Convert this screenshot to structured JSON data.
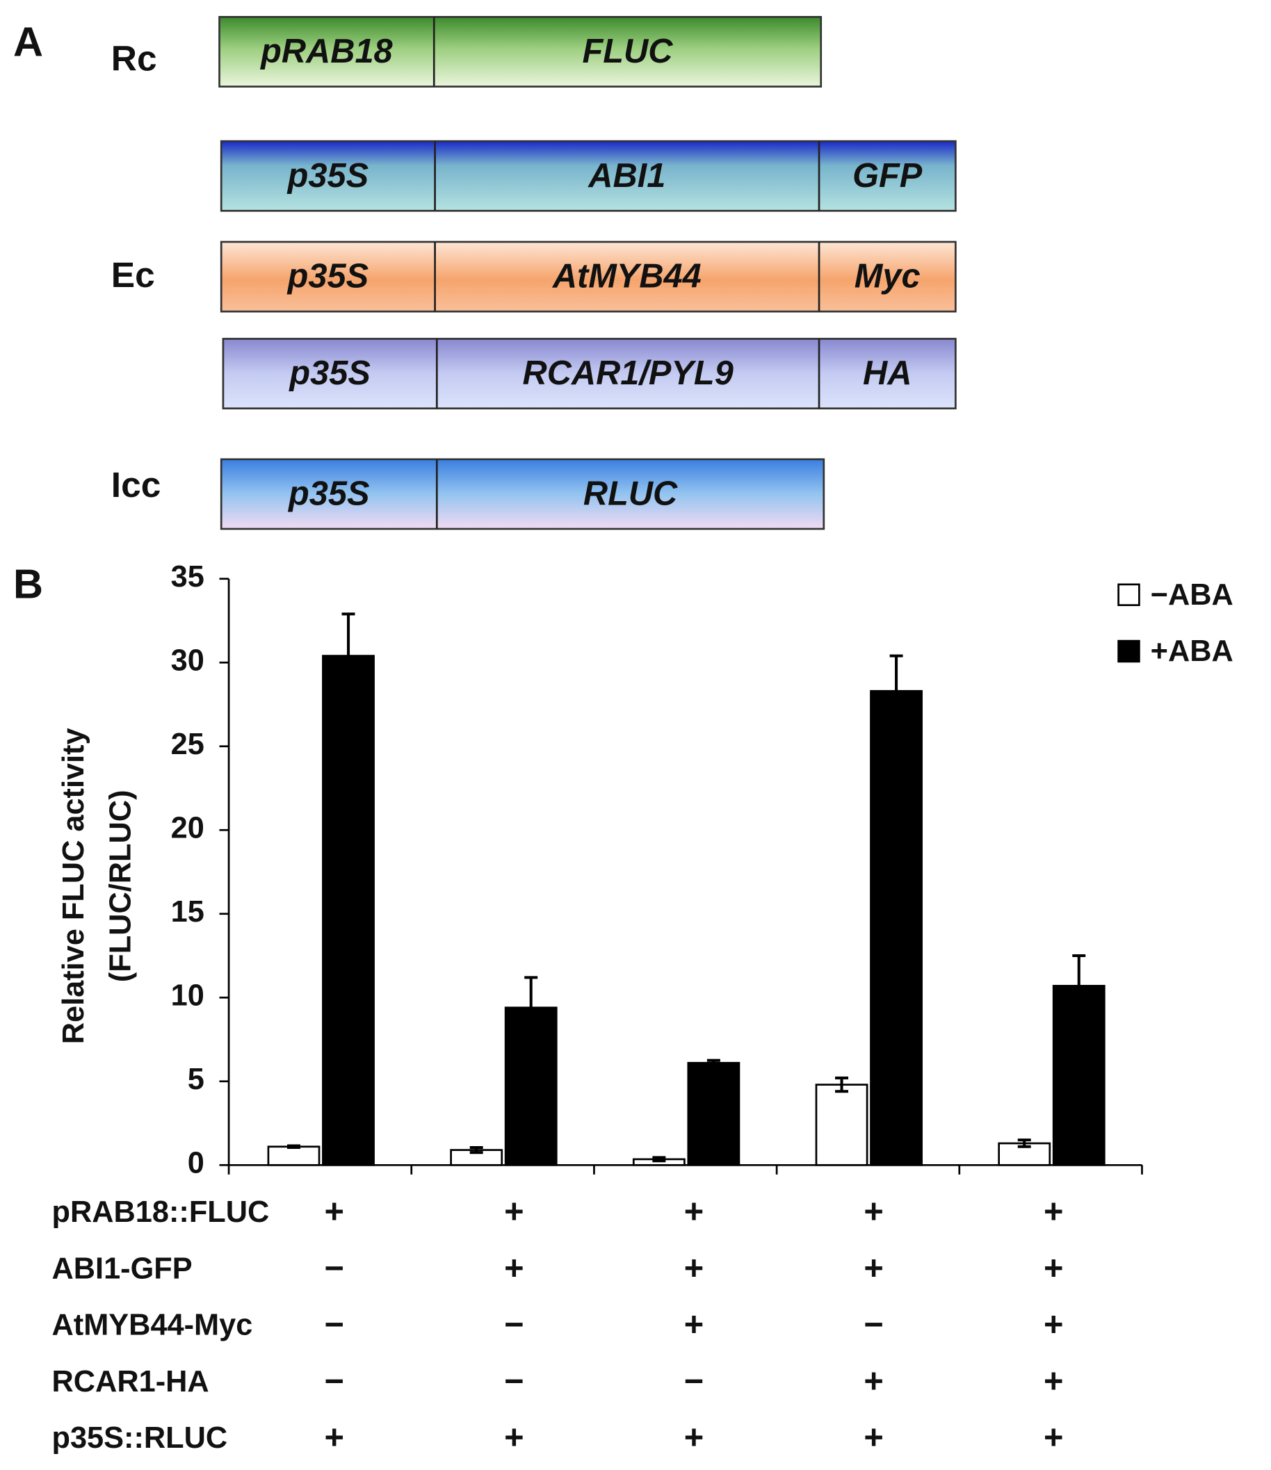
{
  "diagram": {
    "panel_label": "A",
    "groups": [
      {
        "label": "Rc",
        "constructs": [
          {
            "segments": [
              "pRAB18",
              "FLUC"
            ]
          }
        ]
      },
      {
        "label": "Ec",
        "constructs": [
          {
            "segments": [
              "p35S",
              "ABI1",
              "GFP"
            ]
          },
          {
            "segments": [
              "p35S",
              "AtMYB44",
              "Myc"
            ]
          },
          {
            "segments": [
              "p35S",
              "RCAR1/PYL9",
              "HA"
            ]
          }
        ]
      },
      {
        "label": "Icc",
        "constructs": [
          {
            "segments": [
              "p35S",
              "RLUC"
            ]
          }
        ]
      }
    ]
  },
  "chart_data": {
    "type": "bar",
    "panel_label": "B",
    "y_label_lines": [
      "Relative  FLUC activity",
      "(FLUC/RLUC)"
    ],
    "categories": [
      null,
      null,
      null,
      null,
      null
    ],
    "series": [
      {
        "name": "−ABA",
        "color": "#ffffff",
        "values": [
          1.1,
          0.9,
          0.35,
          4.8,
          1.3
        ],
        "errors": [
          0.05,
          0.15,
          0.1,
          0.4,
          0.2
        ]
      },
      {
        "name": "+ABA",
        "color": "#000000",
        "values": [
          30.4,
          9.4,
          6.1,
          28.3,
          10.7
        ],
        "errors": [
          2.5,
          1.8,
          0.15,
          2.1,
          1.8
        ]
      }
    ],
    "ylim": [
      0,
      35
    ],
    "yticks": [
      0,
      5,
      10,
      15,
      20,
      25,
      30,
      35
    ],
    "legend": "top-right",
    "condition_table": {
      "rows": [
        {
          "label": "pRAB18::FLUC",
          "marks": [
            "+",
            "+",
            "+",
            "+",
            "+"
          ]
        },
        {
          "label": "ABI1-GFP",
          "marks": [
            "−",
            "+",
            "+",
            "+",
            "+"
          ]
        },
        {
          "label": "AtMYB44-Myc",
          "marks": [
            "−",
            "−",
            "+",
            "−",
            "+"
          ]
        },
        {
          "label": "RCAR1-HA",
          "marks": [
            "−",
            "−",
            "−",
            "+",
            "+"
          ]
        },
        {
          "label": "p35S::RLUC",
          "marks": [
            "+",
            "+",
            "+",
            "+",
            "+"
          ]
        }
      ]
    }
  }
}
